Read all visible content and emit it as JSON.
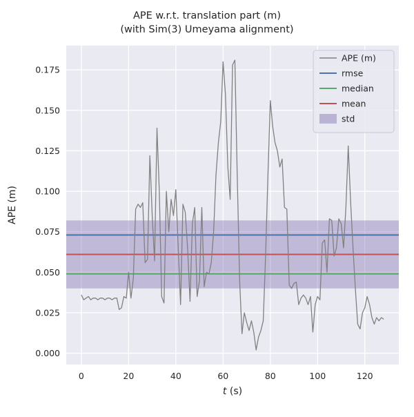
{
  "chart_data": {
    "type": "line",
    "title": "APE w.r.t. translation part (m)",
    "subtitle": "(with Sim(3) Umeyama alignment)",
    "xlabel_var": "t",
    "xlabel_unit": " (s)",
    "ylabel": "APE (m)",
    "xlim": [
      -6.4,
      134.4
    ],
    "ylim": [
      -0.007,
      0.19
    ],
    "grid": true,
    "legend_position": "upper right",
    "x_ticks": [
      0,
      20,
      40,
      60,
      80,
      100,
      120
    ],
    "y_ticks": [
      {
        "value": 0.0,
        "label": "0.000"
      },
      {
        "value": 0.025,
        "label": "0.025"
      },
      {
        "value": 0.05,
        "label": "0.050"
      },
      {
        "value": 0.075,
        "label": "0.075"
      },
      {
        "value": 0.1,
        "label": "0.100"
      },
      {
        "value": 0.125,
        "label": "0.125"
      },
      {
        "value": 0.15,
        "label": "0.150"
      },
      {
        "value": 0.175,
        "label": "0.175"
      }
    ],
    "stats": {
      "rmse": 0.073,
      "mean": 0.061,
      "median": 0.049,
      "std": 0.021,
      "std_band": [
        0.04,
        0.082
      ]
    },
    "series": [
      {
        "name": "APE (m)",
        "x": [
          0,
          1,
          2,
          3,
          4,
          5,
          6,
          7,
          8,
          9,
          10,
          11,
          12,
          13,
          14,
          15,
          16,
          17,
          18,
          19,
          20,
          21,
          22,
          23,
          24,
          25,
          26,
          27,
          28,
          29,
          30,
          31,
          32,
          33,
          34,
          35,
          36,
          37,
          38,
          39,
          40,
          41,
          42,
          43,
          44,
          45,
          46,
          47,
          48,
          49,
          50,
          51,
          52,
          53,
          54,
          55,
          56,
          57,
          58,
          59,
          60,
          61,
          62,
          63,
          64,
          65,
          66,
          67,
          68,
          69,
          70,
          71,
          72,
          73,
          74,
          75,
          76,
          77,
          78,
          79,
          80,
          81,
          82,
          83,
          84,
          85,
          86,
          87,
          88,
          89,
          90,
          91,
          92,
          93,
          94,
          95,
          96,
          97,
          98,
          99,
          100,
          101,
          102,
          103,
          104,
          105,
          106,
          107,
          108,
          109,
          110,
          111,
          112,
          113,
          114,
          115,
          116,
          117,
          118,
          119,
          120,
          121,
          122,
          123,
          124,
          125,
          126,
          127,
          128
        ],
        "y": [
          0.036,
          0.033,
          0.034,
          0.035,
          0.033,
          0.034,
          0.034,
          0.033,
          0.034,
          0.034,
          0.033,
          0.034,
          0.034,
          0.033,
          0.034,
          0.034,
          0.027,
          0.028,
          0.035,
          0.034,
          0.05,
          0.034,
          0.046,
          0.089,
          0.092,
          0.09,
          0.093,
          0.056,
          0.058,
          0.122,
          0.085,
          0.057,
          0.139,
          0.1,
          0.035,
          0.031,
          0.1,
          0.075,
          0.095,
          0.085,
          0.101,
          0.065,
          0.03,
          0.092,
          0.087,
          0.064,
          0.032,
          0.08,
          0.09,
          0.035,
          0.045,
          0.09,
          0.041,
          0.05,
          0.049,
          0.056,
          0.075,
          0.11,
          0.13,
          0.143,
          0.18,
          0.16,
          0.115,
          0.095,
          0.178,
          0.181,
          0.11,
          0.045,
          0.012,
          0.025,
          0.019,
          0.014,
          0.02,
          0.013,
          0.002,
          0.01,
          0.014,
          0.02,
          0.06,
          0.11,
          0.156,
          0.14,
          0.13,
          0.125,
          0.115,
          0.12,
          0.09,
          0.089,
          0.042,
          0.04,
          0.043,
          0.044,
          0.03,
          0.034,
          0.036,
          0.034,
          0.03,
          0.035,
          0.013,
          0.03,
          0.035,
          0.033,
          0.068,
          0.07,
          0.05,
          0.083,
          0.082,
          0.06,
          0.065,
          0.083,
          0.08,
          0.065,
          0.09,
          0.128,
          0.093,
          0.065,
          0.04,
          0.018,
          0.015,
          0.025,
          0.028,
          0.035,
          0.03,
          0.022,
          0.018,
          0.022,
          0.02,
          0.022,
          0.021
        ]
      }
    ],
    "legend": [
      {
        "label": "APE (m)",
        "color": "#808080",
        "type": "line"
      },
      {
        "label": "rmse",
        "color": "#4c72b0",
        "type": "line"
      },
      {
        "label": "median",
        "color": "#55a868",
        "type": "line"
      },
      {
        "label": "mean",
        "color": "#c44e52",
        "type": "line"
      },
      {
        "label": "std",
        "color": "#8172b2",
        "type": "patch"
      }
    ],
    "colors": {
      "background": "#eaeaf2",
      "grid": "#ffffff",
      "ape": "#808080",
      "rmse": "#4c72b0",
      "median": "#55a868",
      "mean": "#c44e52",
      "std": "#8172b2",
      "legend_bg": "#e9e9f2",
      "legend_border": "#c9c9d9"
    }
  }
}
